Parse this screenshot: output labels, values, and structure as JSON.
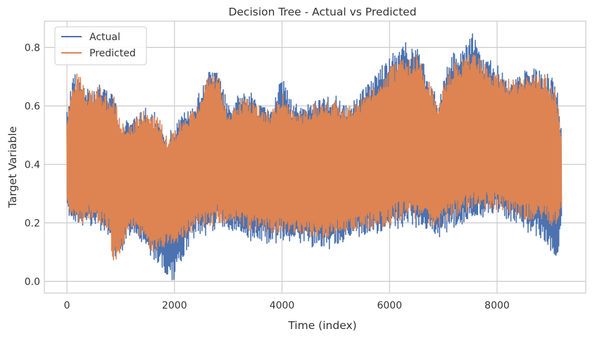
{
  "chart_data": {
    "type": "line",
    "title": "Decision Tree - Actual vs Predicted",
    "xlabel": "Time (index)",
    "ylabel": "Target Variable",
    "xlim": [
      -420,
      9650
    ],
    "ylim": [
      -0.04,
      0.89
    ],
    "x_ticks": [
      0,
      2000,
      4000,
      6000,
      8000
    ],
    "y_ticks": [
      0.0,
      0.2,
      0.4,
      0.6,
      0.8
    ],
    "x_tick_labels": [
      "0",
      "2000",
      "4000",
      "6000",
      "8000"
    ],
    "y_tick_labels": [
      "0.0",
      "0.2",
      "0.4",
      "0.6",
      "0.8"
    ],
    "grid": true,
    "legend_position": "top-left",
    "series": [
      {
        "name": "Actual",
        "color": "#4c72b0",
        "envelope": {
          "x": [
            0,
            80,
            200,
            400,
            600,
            800,
            850,
            1000,
            1100,
            1200,
            1400,
            1600,
            1750,
            1850,
            2000,
            2200,
            2400,
            2600,
            2800,
            3000,
            3200,
            3400,
            3600,
            3800,
            4000,
            4200,
            4400,
            4600,
            4800,
            5000,
            5200,
            5400,
            5600,
            5800,
            6000,
            6200,
            6300,
            6400,
            6500,
            6700,
            6800,
            6900,
            7000,
            7200,
            7400,
            7550,
            7700,
            7900,
            8100,
            8300,
            8500,
            8700,
            8900,
            9100,
            9200
          ],
          "high": [
            0.58,
            0.69,
            0.72,
            0.66,
            0.68,
            0.64,
            0.66,
            0.55,
            0.56,
            0.55,
            0.6,
            0.58,
            0.57,
            0.48,
            0.55,
            0.6,
            0.62,
            0.72,
            0.74,
            0.6,
            0.64,
            0.65,
            0.61,
            0.6,
            0.7,
            0.61,
            0.6,
            0.62,
            0.63,
            0.64,
            0.61,
            0.64,
            0.68,
            0.72,
            0.78,
            0.8,
            0.83,
            0.8,
            0.82,
            0.72,
            0.68,
            0.6,
            0.7,
            0.79,
            0.8,
            0.85,
            0.78,
            0.76,
            0.72,
            0.7,
            0.72,
            0.73,
            0.72,
            0.68,
            0.52
          ],
          "low": [
            0.25,
            0.2,
            0.18,
            0.19,
            0.17,
            0.15,
            0.05,
            0.08,
            0.13,
            0.16,
            0.12,
            0.06,
            0.04,
            0.01,
            0.0,
            0.1,
            0.16,
            0.15,
            0.18,
            0.18,
            0.15,
            0.13,
            0.14,
            0.12,
            0.14,
            0.13,
            0.13,
            0.11,
            0.1,
            0.12,
            0.14,
            0.15,
            0.16,
            0.16,
            0.17,
            0.18,
            0.18,
            0.2,
            0.18,
            0.17,
            0.15,
            0.14,
            0.16,
            0.18,
            0.2,
            0.22,
            0.21,
            0.23,
            0.21,
            0.2,
            0.17,
            0.16,
            0.13,
            0.04,
            0.2
          ]
        }
      },
      {
        "name": "Predicted",
        "color": "#dd8452",
        "envelope": {
          "x": [
            0,
            80,
            200,
            400,
            600,
            800,
            850,
            1000,
            1100,
            1200,
            1400,
            1600,
            1750,
            1850,
            2000,
            2200,
            2400,
            2600,
            2800,
            3000,
            3200,
            3400,
            3600,
            3800,
            4000,
            4200,
            4400,
            4600,
            4800,
            5000,
            5200,
            5400,
            5600,
            5800,
            6000,
            6200,
            6300,
            6400,
            6500,
            6700,
            6800,
            6900,
            7000,
            7200,
            7400,
            7550,
            7700,
            7900,
            8100,
            8300,
            8500,
            8700,
            8900,
            9100,
            9200
          ],
          "high": [
            0.56,
            0.65,
            0.72,
            0.65,
            0.67,
            0.62,
            0.66,
            0.54,
            0.55,
            0.54,
            0.59,
            0.58,
            0.55,
            0.5,
            0.52,
            0.57,
            0.6,
            0.7,
            0.73,
            0.58,
            0.62,
            0.63,
            0.6,
            0.58,
            0.66,
            0.6,
            0.59,
            0.61,
            0.61,
            0.62,
            0.6,
            0.62,
            0.66,
            0.69,
            0.73,
            0.76,
            0.76,
            0.76,
            0.78,
            0.7,
            0.66,
            0.6,
            0.68,
            0.75,
            0.77,
            0.78,
            0.76,
            0.73,
            0.7,
            0.69,
            0.7,
            0.71,
            0.71,
            0.66,
            0.5
          ],
          "low": [
            0.26,
            0.22,
            0.18,
            0.21,
            0.19,
            0.17,
            0.06,
            0.09,
            0.15,
            0.18,
            0.15,
            0.09,
            0.1,
            0.12,
            0.12,
            0.15,
            0.18,
            0.18,
            0.2,
            0.2,
            0.19,
            0.17,
            0.18,
            0.16,
            0.16,
            0.16,
            0.16,
            0.15,
            0.14,
            0.16,
            0.16,
            0.17,
            0.18,
            0.18,
            0.19,
            0.21,
            0.21,
            0.23,
            0.21,
            0.2,
            0.16,
            0.17,
            0.2,
            0.22,
            0.23,
            0.25,
            0.24,
            0.25,
            0.24,
            0.23,
            0.21,
            0.2,
            0.2,
            0.18,
            0.25
          ]
        }
      }
    ]
  }
}
